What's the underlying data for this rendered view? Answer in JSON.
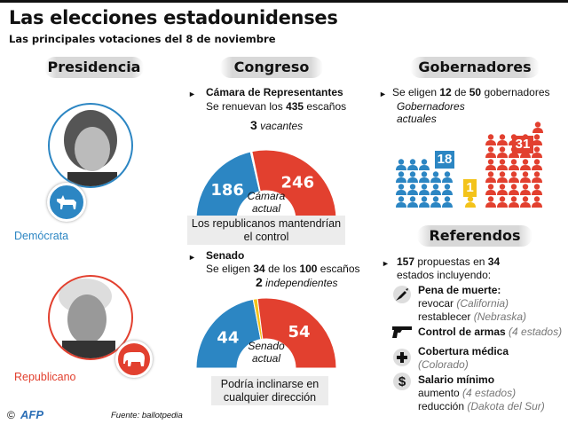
{
  "title": "Las elecciones estadounidenses",
  "subtitle": "Las principales votaciones del 8 de noviembre",
  "colors": {
    "dem": "#2c86c3",
    "rep": "#e2402f",
    "ind": "#f3c31a"
  },
  "presidencia": {
    "header": "Presidencia",
    "dem_label": "Demócrata",
    "rep_label": "Republicano",
    "dem_icon": "donkey-icon",
    "rep_icon": "elephant-icon"
  },
  "congreso": {
    "header": "Congreso",
    "camara": {
      "title": "Cámara de Representantes",
      "line_pre": "Se renuevan los ",
      "line_num": "435",
      "line_post": " escaños",
      "vac_num": "3",
      "vac_label": "vacantes",
      "dem": 186,
      "rep": 246,
      "vac": 3,
      "dem_text": "186",
      "rep_text": "246",
      "center_1": "Cámara",
      "center_2": "actual",
      "note": "Los republicanos mantendrían el control"
    },
    "senado": {
      "title": "Senado",
      "line_pre": "Se eligen ",
      "line_num1": "34",
      "line_mid": " de los ",
      "line_num2": "100",
      "line_post": " escaños",
      "ind_num": "2",
      "ind_label": "independientes",
      "dem": 44,
      "rep": 54,
      "ind": 2,
      "dem_text": "44",
      "rep_text": "54",
      "center_1": "Senado",
      "center_2": "actual",
      "note": "Podría inclinarse en cualquier dirección"
    }
  },
  "gobernadores": {
    "header": "Gobernadores",
    "line_pre": "Se eligen ",
    "num1": "12",
    "mid": " de ",
    "num2": "50",
    "post": " gobernadores",
    "sub": "Gobernadores actuales",
    "dem": 18,
    "ind": 1,
    "rep": 31,
    "dem_text": "18",
    "ind_text": "1",
    "rep_text": "31"
  },
  "referendos": {
    "header": "Referendos",
    "num1": "157",
    "mid": " propuestas en ",
    "num2": "34",
    "post": " estados incluyendo:",
    "items": [
      {
        "icon": "syringe-icon",
        "title": "Pena de muerte:",
        "lines": [
          [
            "revocar ",
            "(California)"
          ],
          [
            "restablecer ",
            "(Nebraska)"
          ]
        ]
      },
      {
        "icon": "gun-icon",
        "title": "Control de armas",
        "note": "(4 estados)"
      },
      {
        "icon": "medical-cross-icon",
        "title": "Cobertura médica",
        "lines": [
          [
            "",
            "(Colorado)"
          ]
        ]
      },
      {
        "icon": "dollar-icon",
        "title": "Salario mínimo",
        "lines": [
          [
            "aumento ",
            "(4 estados)"
          ],
          [
            "reducción ",
            "(Dakota del Sur)"
          ]
        ]
      }
    ]
  },
  "footer": {
    "copyright": "©",
    "logo": "AFP",
    "source": "Fuente: ballotpedia"
  }
}
